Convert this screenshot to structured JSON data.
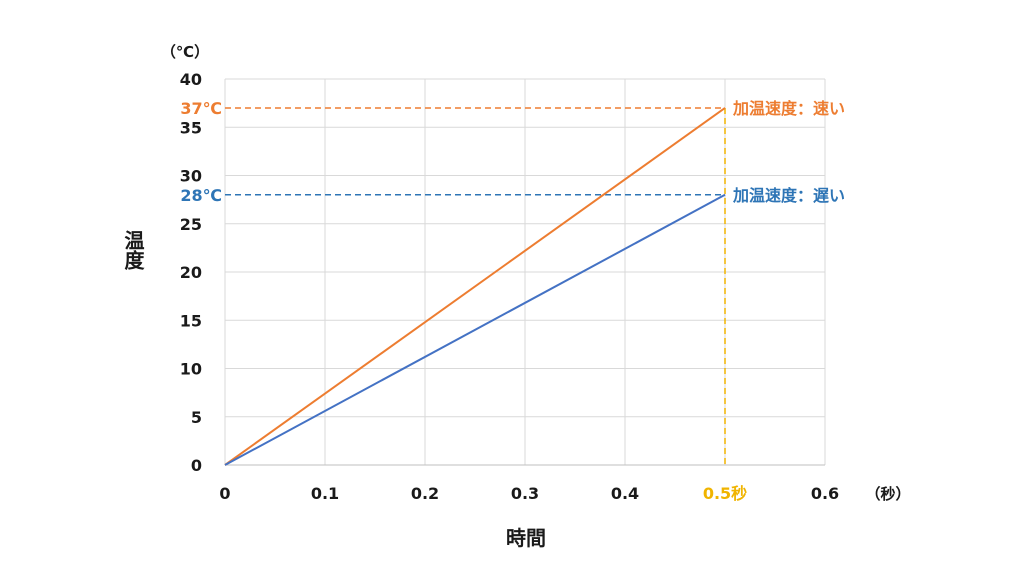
{
  "chart_data": {
    "type": "line",
    "x": [
      0,
      0.5
    ],
    "xlim": [
      0,
      0.6
    ],
    "ylim": [
      0,
      40
    ],
    "xticks": [
      "0",
      "0.1",
      "0.2",
      "0.3",
      "0.4",
      "0.5秒",
      "0.6"
    ],
    "yticks": [
      "0",
      "5",
      "10",
      "15",
      "20",
      "25",
      "30",
      "35",
      "40"
    ],
    "xlabel": "時間",
    "ylabel": "温度",
    "x_unit": "（秒）",
    "y_unit": "（℃）",
    "grid": true,
    "series": [
      {
        "name": "加温速度：速い",
        "values": [
          0,
          37
        ],
        "color": "#ED7D31",
        "end_label": "37℃"
      },
      {
        "name": "加温速度：遅い",
        "values": [
          0,
          28
        ],
        "color": "#4472C4",
        "end_label": "28℃"
      }
    ],
    "annotation_colors": {
      "fast": "#ED7D31",
      "slow": "#2E75B6",
      "time": "#F0B400"
    }
  }
}
